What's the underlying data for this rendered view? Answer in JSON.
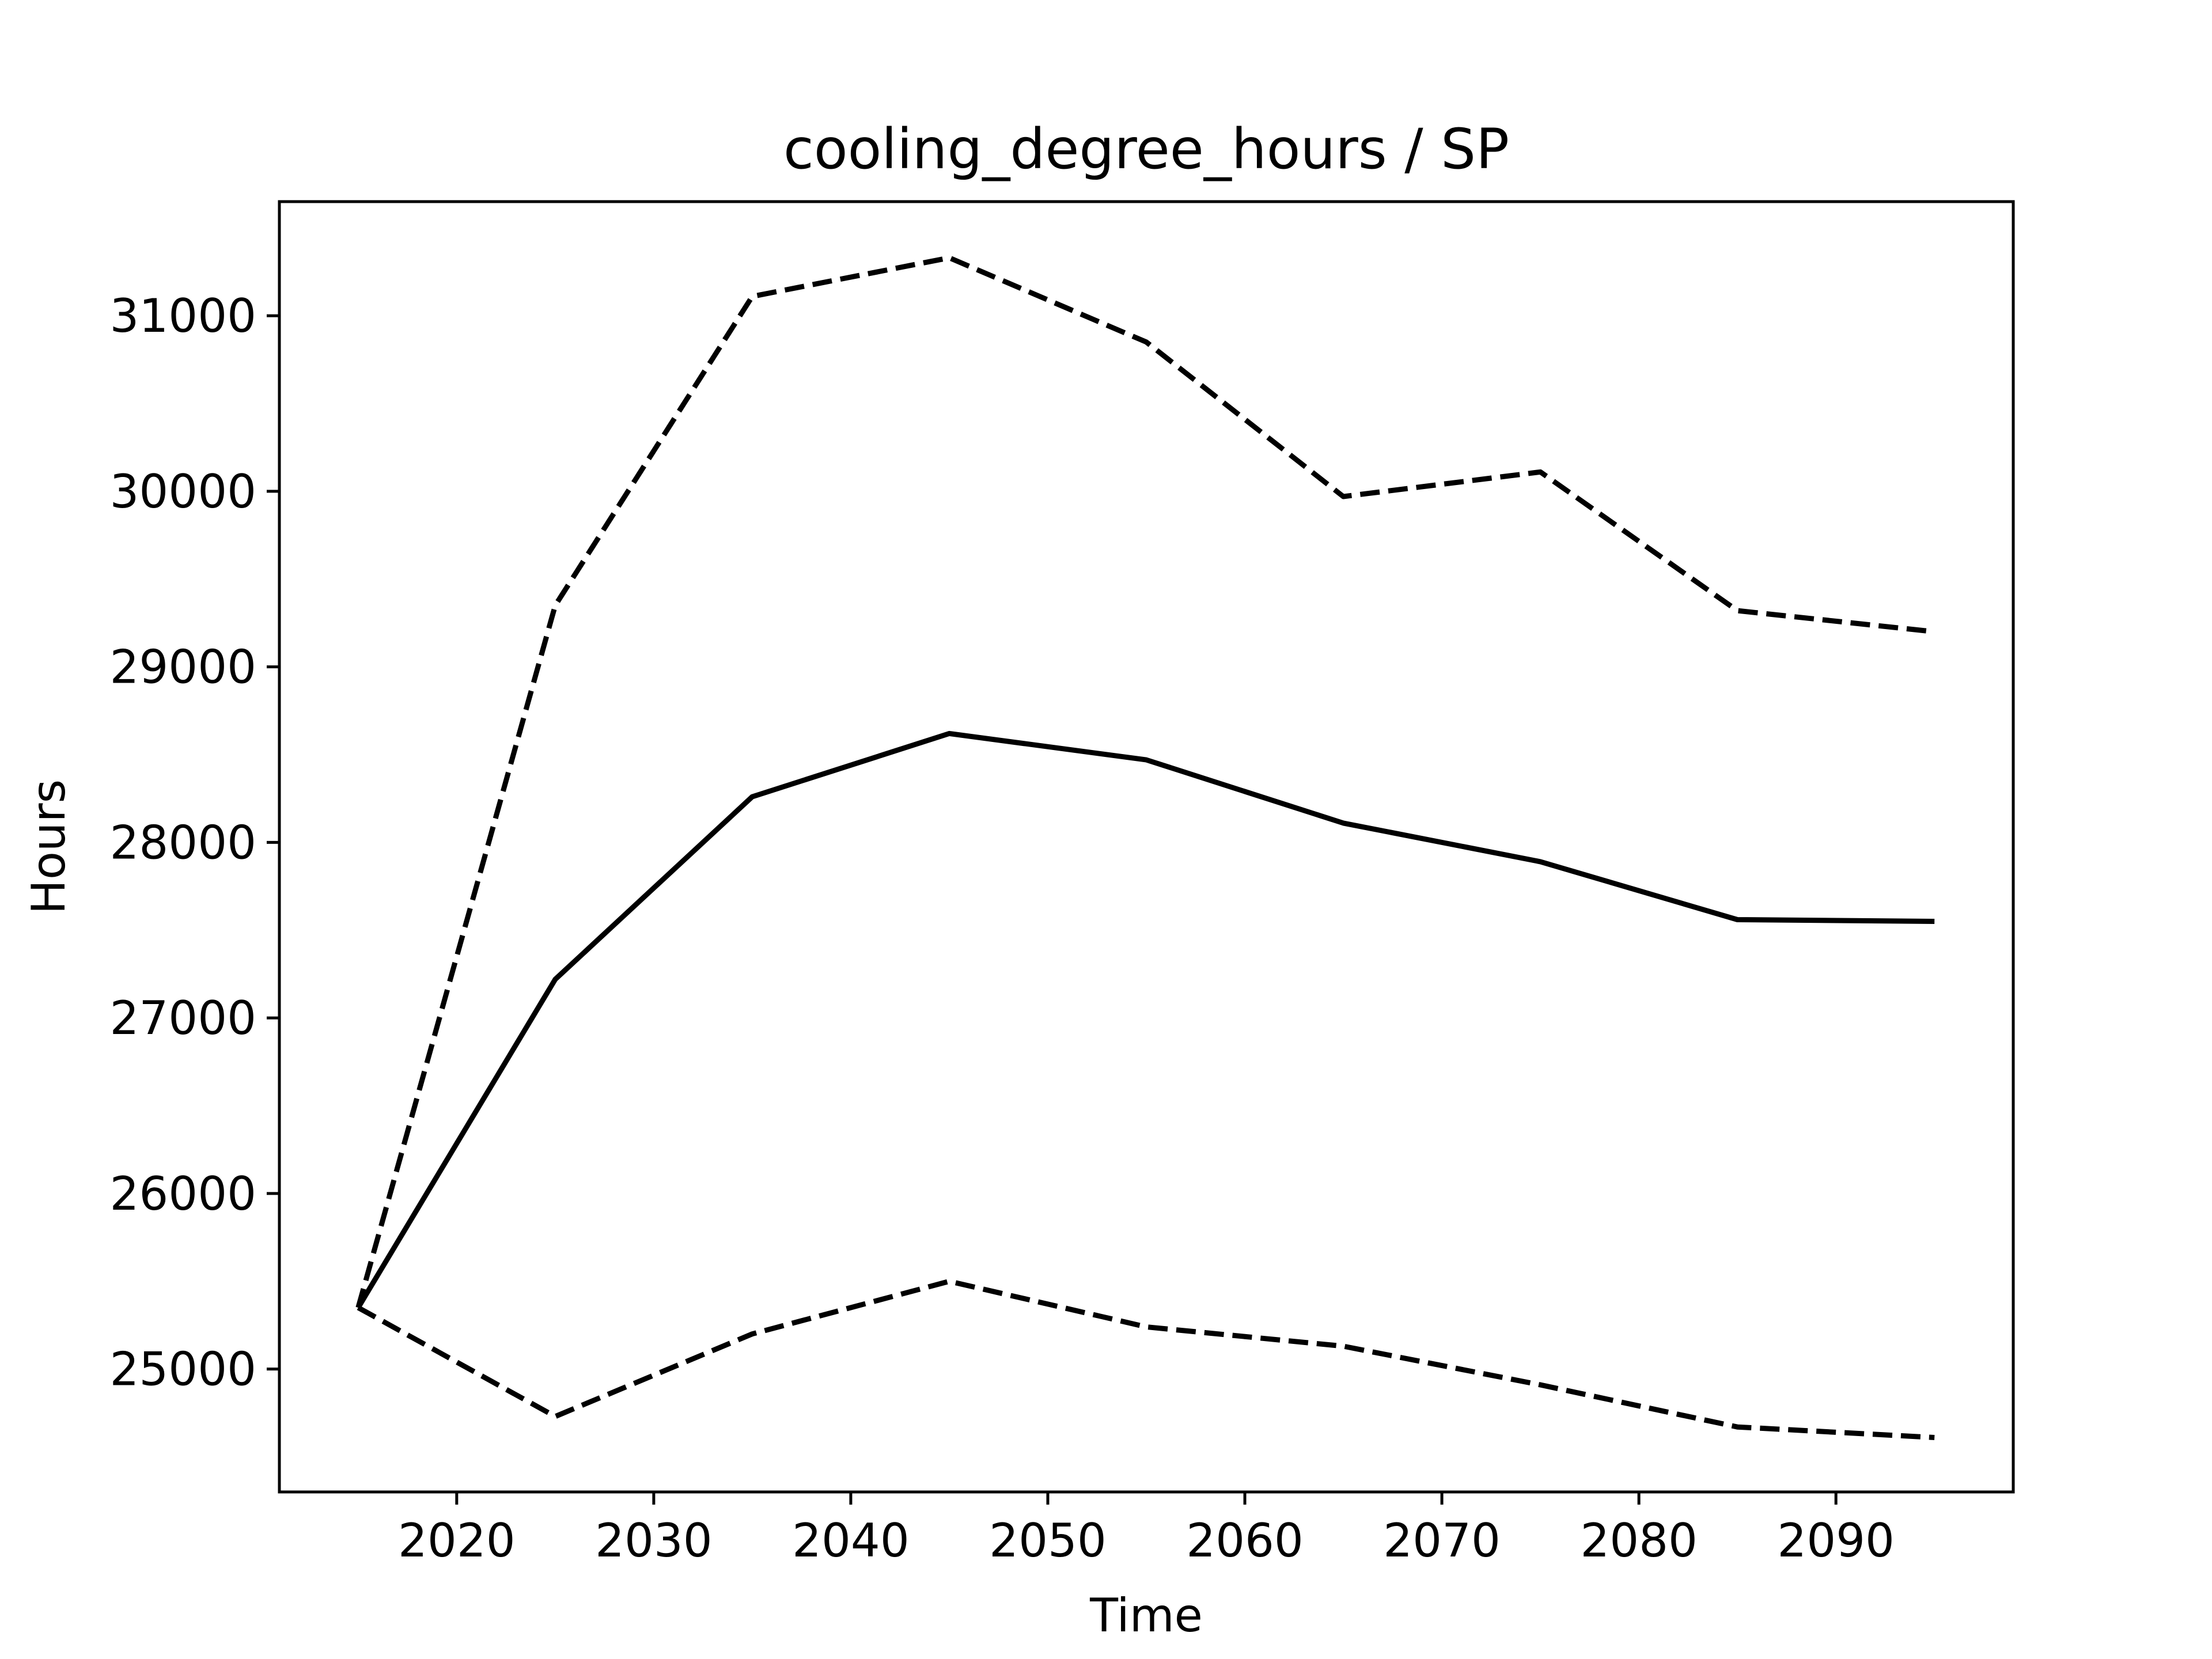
{
  "chart_data": {
    "type": "line",
    "title": "cooling_degree_hours / SP",
    "xlabel": "Time",
    "ylabel": "Hours",
    "x": [
      2015,
      2025,
      2035,
      2045,
      2055,
      2065,
      2075,
      2085,
      2095
    ],
    "xlim": [
      2011,
      2099
    ],
    "ylim": [
      24300,
      31650
    ],
    "xticks": [
      2020,
      2030,
      2040,
      2050,
      2060,
      2070,
      2080,
      2090
    ],
    "yticks": [
      25000,
      26000,
      27000,
      28000,
      29000,
      30000,
      31000
    ],
    "grid": false,
    "series": [
      {
        "style": "solid",
        "color": "#000000",
        "values": [
          25350,
          27220,
          28260,
          28620,
          28470,
          28110,
          27890,
          27560,
          27550
        ]
      },
      {
        "style": "dashed",
        "color": "#000000",
        "values": [
          25350,
          29350,
          31110,
          31330,
          30850,
          29970,
          30110,
          29320,
          29200
        ]
      },
      {
        "style": "dashed",
        "color": "#000000",
        "values": [
          25350,
          24730,
          25200,
          25500,
          25240,
          25130,
          24910,
          24670,
          24610
        ]
      }
    ]
  }
}
